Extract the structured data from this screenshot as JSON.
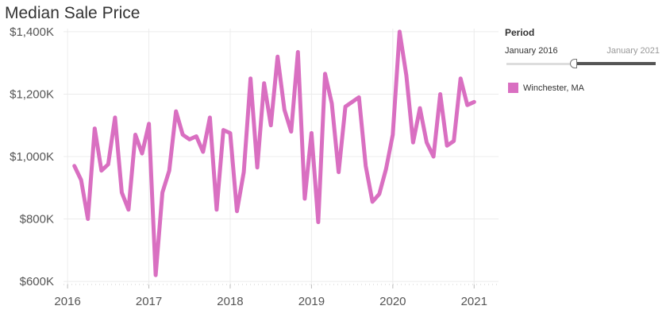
{
  "chart_data": {
    "type": "line",
    "title": "Median Sale Price",
    "xlabel": "",
    "ylabel": "",
    "xlim": [
      2015.95,
      2021.3
    ],
    "ylim": [
      590000,
      1410000
    ],
    "y_ticks": [
      600000,
      800000,
      1000000,
      1200000,
      1400000
    ],
    "y_tick_labels": [
      "$600K",
      "$800K",
      "$1,000K",
      "$1,200K",
      "$1,400K"
    ],
    "x_ticks": [
      2016,
      2017,
      2018,
      2019,
      2020,
      2021
    ],
    "x_tick_labels": [
      "2016",
      "2017",
      "2018",
      "2019",
      "2020",
      "2021"
    ],
    "grid": true,
    "color": "#d96fc1",
    "series": [
      {
        "name": "Winchester, MA",
        "x": [
          "2016-02",
          "2016-03",
          "2016-04",
          "2016-05",
          "2016-06",
          "2016-07",
          "2016-08",
          "2016-09",
          "2016-10",
          "2016-11",
          "2016-12",
          "2017-01",
          "2017-02",
          "2017-03",
          "2017-04",
          "2017-05",
          "2017-06",
          "2017-07",
          "2017-08",
          "2017-09",
          "2017-10",
          "2017-11",
          "2017-12",
          "2018-01",
          "2018-02",
          "2018-03",
          "2018-04",
          "2018-05",
          "2018-06",
          "2018-07",
          "2018-08",
          "2018-09",
          "2018-10",
          "2018-11",
          "2018-12",
          "2019-01",
          "2019-02",
          "2019-03",
          "2019-04",
          "2019-05",
          "2019-06",
          "2019-07",
          "2019-08",
          "2019-09",
          "2019-10",
          "2019-11",
          "2019-12",
          "2020-01",
          "2020-02",
          "2020-03",
          "2020-04",
          "2020-05",
          "2020-06",
          "2020-07",
          "2020-08",
          "2020-09",
          "2020-10",
          "2020-11",
          "2020-12",
          "2021-01"
        ],
        "values": [
          970000,
          925000,
          800000,
          1090000,
          955000,
          975000,
          1125000,
          885000,
          830000,
          1070000,
          1010000,
          1105000,
          620000,
          885000,
          955000,
          1145000,
          1070000,
          1055000,
          1065000,
          1015000,
          1125000,
          830000,
          1085000,
          1075000,
          825000,
          950000,
          1250000,
          965000,
          1235000,
          1100000,
          1320000,
          1150000,
          1080000,
          1335000,
          865000,
          1075000,
          790000,
          1265000,
          1170000,
          950000,
          1160000,
          1175000,
          1190000,
          970000,
          855000,
          880000,
          960000,
          1070000,
          1400000,
          1260000,
          1045000,
          1155000,
          1045000,
          1000000,
          1200000,
          1035000,
          1050000,
          1250000,
          1165000,
          1175000
        ]
      }
    ]
  },
  "panel": {
    "period_label": "Period",
    "range_start": "January 2016",
    "range_end": "January 2021",
    "legend_label": "Winchester, MA"
  }
}
